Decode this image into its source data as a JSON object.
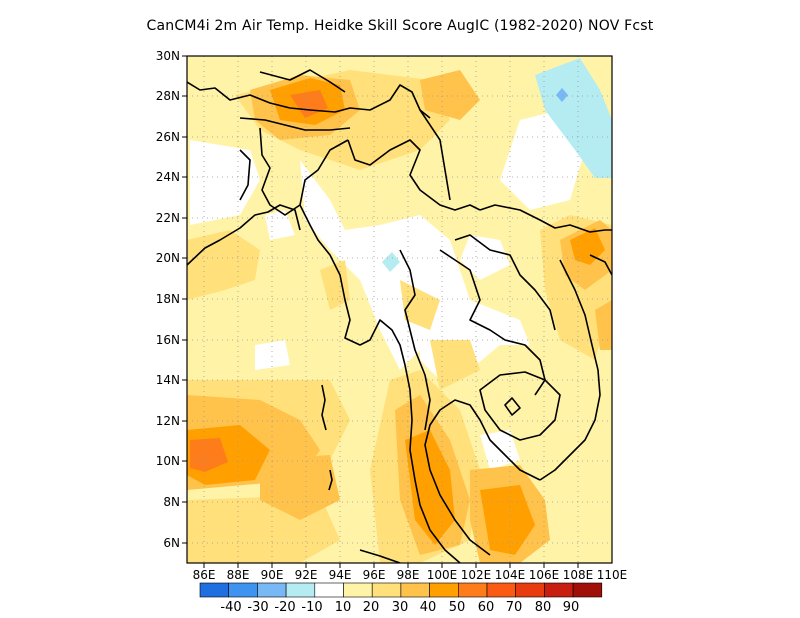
{
  "title": "CanCM4i  2m Air Temp. Heidke Skill Score AugIC (1982-2020) NOV Fcst",
  "map": {
    "lon_range": [
      85,
      110
    ],
    "lat_range": [
      5,
      30
    ],
    "lon_ticks": [
      "86E",
      "88E",
      "90E",
      "92E",
      "94E",
      "96E",
      "98E",
      "100E",
      "102E",
      "104E",
      "106E",
      "108E",
      "110E"
    ],
    "lat_ticks": [
      "6N",
      "8N",
      "10N",
      "12N",
      "14N",
      "16N",
      "18N",
      "20N",
      "22N",
      "24N",
      "26N",
      "28N",
      "30N"
    ],
    "grid": true
  },
  "colorbar": {
    "colors": [
      "#1f6fe0",
      "#3f93f0",
      "#78b8f5",
      "#b4ecf2",
      "#ffffff",
      "#fff3a8",
      "#ffe07a",
      "#ffc24a",
      "#ffa000",
      "#ff7c1a",
      "#fb5a12",
      "#e83c10",
      "#c81e10",
      "#a01008"
    ],
    "labels": [
      "-40",
      "-30",
      "-20",
      "-10",
      "10",
      "20",
      "30",
      "40",
      "50",
      "60",
      "70",
      "80",
      "90"
    ]
  },
  "legend_classes": [
    "white",
    "light",
    "yellow",
    "gold",
    "orange",
    "dark-orange",
    "red",
    "blue"
  ],
  "colors": {
    "white": "#ffffff",
    "light": "#fff3a8",
    "yellow": "#ffe07a",
    "gold": "#ffc24a",
    "orange": "#ffa000",
    "dark_orange": "#ff7c1a",
    "red": "#fb5a12",
    "cyan": "#b4ecf2",
    "blue": "#78b8f5"
  }
}
